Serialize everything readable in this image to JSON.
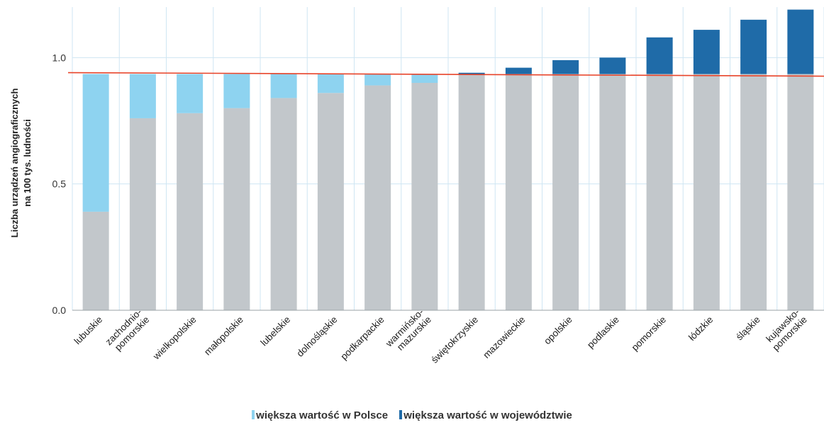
{
  "chart_data": {
    "type": "bar",
    "stacked": true,
    "ylabel_lines": [
      "Liczba urządzeń angiograficznych",
      "na 100 tys. ludności"
    ],
    "ylim": [
      0,
      1.2
    ],
    "y_ticks": [
      "0.0",
      "0.5",
      "1.0"
    ],
    "y_tick_values": [
      0,
      0.5,
      1.0
    ],
    "reference_line": {
      "value": 0.935,
      "color": "#e8442a"
    },
    "grid": true,
    "legend_placement": "bottom",
    "colors": {
      "base": "#c2c7cb",
      "below": "#8ed3f0",
      "above": "#1f6ba8",
      "grid": "#cfe6f3"
    },
    "categories": [
      [
        "lubuskie"
      ],
      [
        "zachodnio-",
        "pomorskie"
      ],
      [
        "wielkopolskie"
      ],
      [
        "małopolskie"
      ],
      [
        "lubelskie"
      ],
      [
        "dolnośląskie"
      ],
      [
        "podkarpackie"
      ],
      [
        "warmińsko-",
        "mazurskie"
      ],
      [
        "świętokrzyskie"
      ],
      [
        "mazowieckie"
      ],
      [
        "opolskie"
      ],
      [
        "podlaskie"
      ],
      [
        "pomorskie"
      ],
      [
        "łódzkie"
      ],
      [
        "śląskie"
      ],
      [
        "kujawsko-",
        "pomorskie"
      ]
    ],
    "values": [
      0.39,
      0.76,
      0.78,
      0.8,
      0.84,
      0.86,
      0.89,
      0.9,
      0.94,
      0.96,
      0.99,
      1.0,
      1.08,
      1.11,
      1.15,
      1.19
    ],
    "series": [
      {
        "name": "większa wartość w Polsce",
        "color": "#8ed3f0"
      },
      {
        "name": "większa wartość w województwie",
        "color": "#1f6ba8"
      }
    ]
  }
}
